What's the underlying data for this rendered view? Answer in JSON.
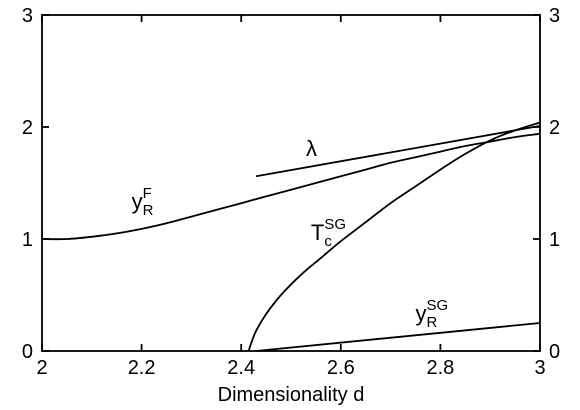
{
  "chart_data": {
    "type": "line",
    "xlabel": "Dimensionality d",
    "ylabel": "",
    "xlim": [
      2,
      3
    ],
    "ylim": [
      0,
      3
    ],
    "x_ticks": [
      {
        "value": 2,
        "label": "2"
      },
      {
        "value": 2.2,
        "label": "2.2"
      },
      {
        "value": 2.4,
        "label": "2.4"
      },
      {
        "value": 2.6,
        "label": "2.6"
      },
      {
        "value": 2.8,
        "label": "2.8"
      },
      {
        "value": 3,
        "label": "3"
      }
    ],
    "y_ticks": [
      {
        "value": 0,
        "label": "0"
      },
      {
        "value": 1,
        "label": "1"
      },
      {
        "value": 2,
        "label": "2"
      },
      {
        "value": 3,
        "label": "3"
      }
    ],
    "right_axis_ticks": [
      {
        "value": 0,
        "label": "0"
      },
      {
        "value": 1,
        "label": "1"
      },
      {
        "value": 2,
        "label": "2"
      },
      {
        "value": 3,
        "label": "3"
      }
    ],
    "grid": false,
    "legend": "none",
    "series": [
      {
        "name": "y_R^F",
        "label": {
          "main": "y",
          "sub": "R",
          "sup": "F"
        },
        "label_at": {
          "x": 2.18,
          "y": 1.27
        },
        "x": [
          2.0,
          2.05,
          2.1,
          2.15,
          2.2,
          2.25,
          2.3,
          2.35,
          2.4,
          2.45,
          2.5,
          2.55,
          2.6,
          2.65,
          2.7,
          2.75,
          2.8,
          2.85,
          2.9,
          2.95,
          3.0
        ],
        "y": [
          1.0,
          1.0,
          1.02,
          1.05,
          1.09,
          1.14,
          1.2,
          1.26,
          1.32,
          1.38,
          1.44,
          1.5,
          1.56,
          1.62,
          1.68,
          1.73,
          1.78,
          1.83,
          1.87,
          1.91,
          1.94
        ]
      },
      {
        "name": "λ",
        "label": {
          "main": "λ",
          "sub": "",
          "sup": ""
        },
        "label_at": {
          "x": 2.53,
          "y": 1.74
        },
        "x": [
          2.43,
          3.0
        ],
        "y": [
          1.56,
          2.01
        ]
      },
      {
        "name": "T_c^SG",
        "label": {
          "main": "T",
          "sub": "c",
          "sup": "SG"
        },
        "label_at": {
          "x": 2.54,
          "y": 0.99
        },
        "x": [
          2.415,
          2.42,
          2.43,
          2.45,
          2.48,
          2.52,
          2.56,
          2.6,
          2.65,
          2.7,
          2.75,
          2.8,
          2.85,
          2.9,
          2.95,
          3.0
        ],
        "y": [
          0.0,
          0.07,
          0.18,
          0.33,
          0.5,
          0.68,
          0.83,
          0.98,
          1.15,
          1.32,
          1.47,
          1.62,
          1.76,
          1.88,
          1.97,
          2.04
        ]
      },
      {
        "name": "y_R^SG",
        "label": {
          "main": "y",
          "sub": "R",
          "sup": "SG"
        },
        "label_at": {
          "x": 2.75,
          "y": 0.27
        },
        "x": [
          2.43,
          3.0
        ],
        "y": [
          0.0,
          0.25
        ]
      }
    ]
  }
}
